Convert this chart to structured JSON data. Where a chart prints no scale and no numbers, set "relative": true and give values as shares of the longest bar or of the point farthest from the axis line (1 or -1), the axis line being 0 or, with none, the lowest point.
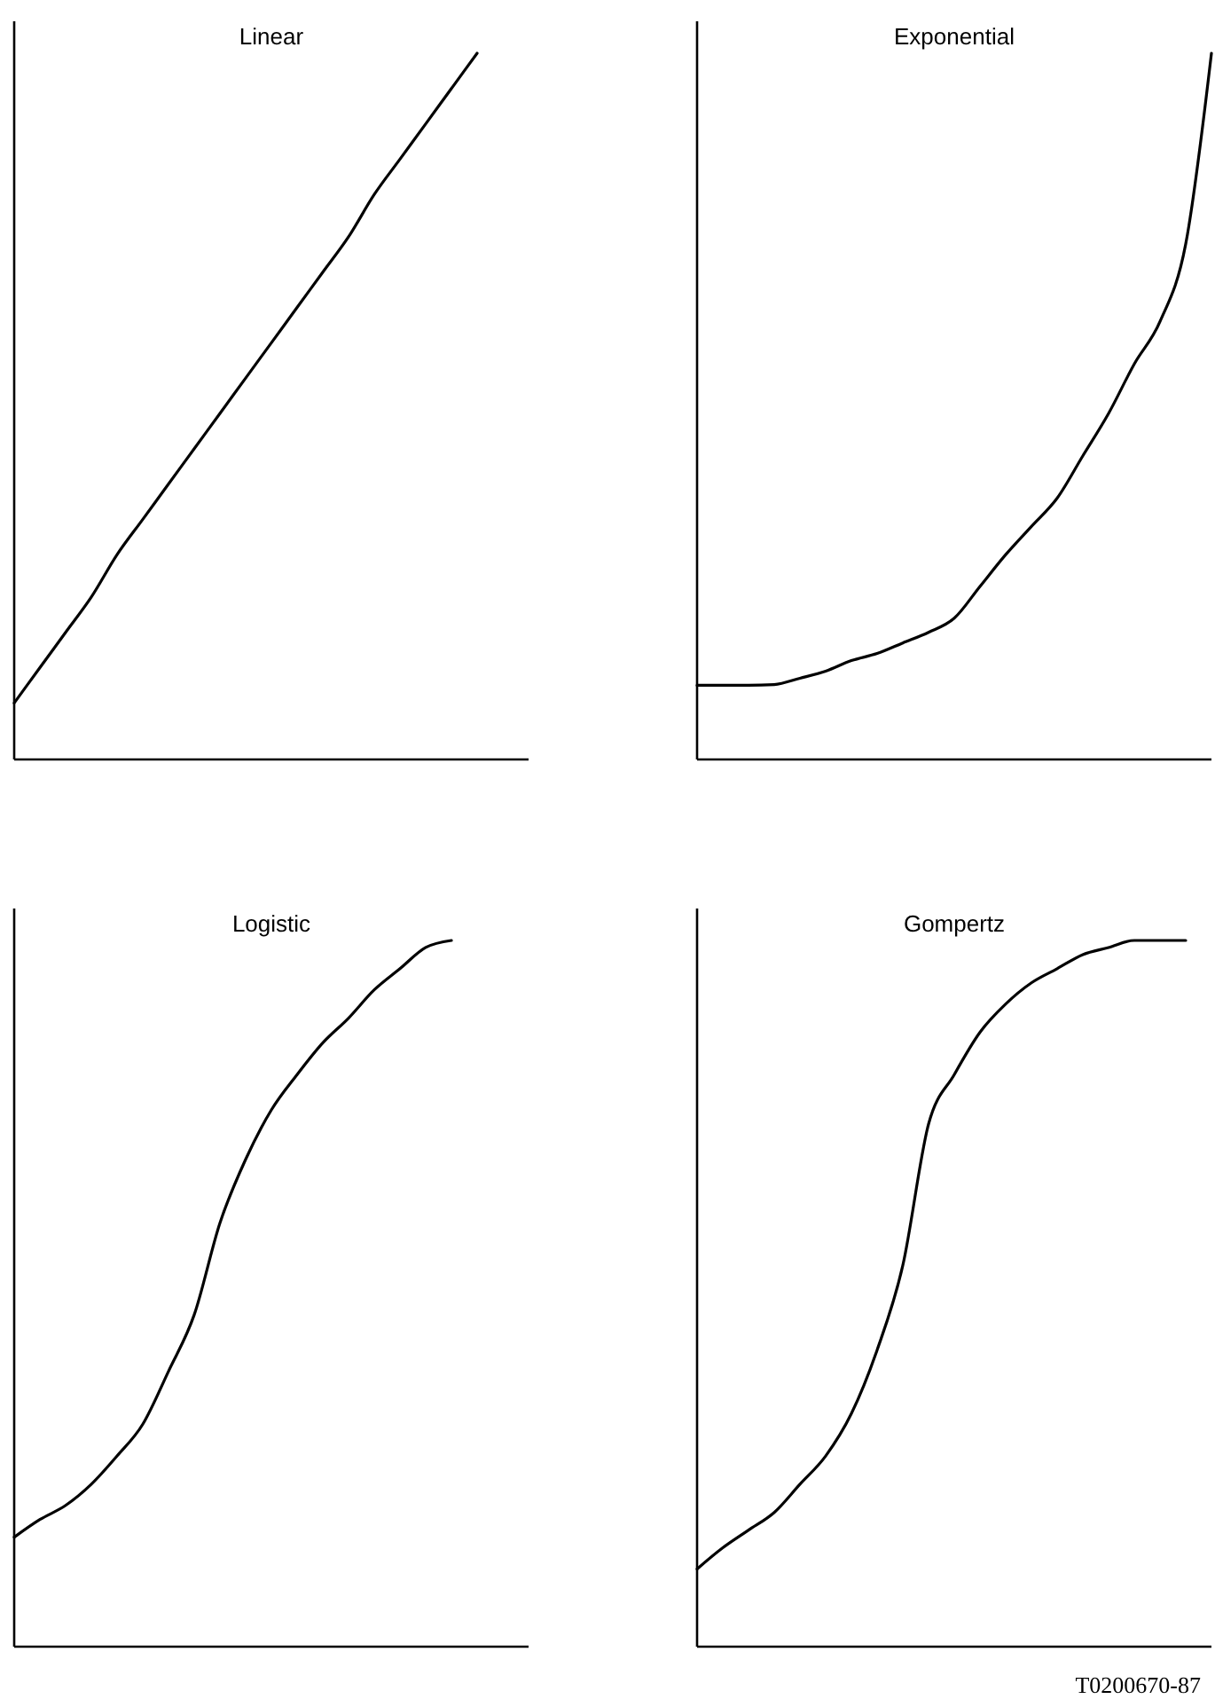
{
  "chart_data": [
    {
      "type": "line",
      "title": "Linear",
      "relative": true,
      "categories": [
        null,
        null,
        null,
        null,
        null,
        null,
        null,
        null,
        null,
        null,
        null,
        null,
        null,
        null,
        null,
        null,
        null,
        null,
        null,
        null,
        null
      ],
      "series": [
        {
          "color": "#000000",
          "values": [
            0.08,
            0.13,
            0.18,
            0.23,
            0.29,
            0.34,
            0.39,
            0.44,
            0.49,
            0.54,
            0.59,
            0.64,
            0.69,
            0.74,
            0.8,
            0.85,
            0.9,
            0.95,
            1,
            null,
            null
          ]
        }
      ]
    },
    {
      "type": "line",
      "title": "Exponential",
      "relative": true,
      "categories": [
        null,
        null,
        null,
        null,
        null,
        null,
        null,
        null,
        null,
        null,
        null,
        null,
        null,
        null,
        null,
        null,
        null,
        null,
        null,
        null,
        null
      ],
      "series": [
        {
          "color": "#000000",
          "values": [
            0.105,
            0.105,
            0.105,
            0.106,
            0.115,
            0.125,
            0.14,
            0.15,
            0.165,
            0.18,
            0.2,
            0.245,
            0.29,
            0.33,
            0.37,
            0.43,
            0.49,
            0.56,
            0.62,
            0.73,
            1
          ]
        }
      ]
    },
    {
      "type": "line",
      "title": "Logistic",
      "relative": true,
      "categories": [
        null,
        null,
        null,
        null,
        null,
        null,
        null,
        null,
        null,
        null,
        null,
        null,
        null,
        null,
        null,
        null,
        null,
        null,
        null,
        null,
        null
      ],
      "series": [
        {
          "color": "#000000",
          "values": [
            0.155,
            0.18,
            0.2,
            0.23,
            0.27,
            0.315,
            0.39,
            0.47,
            0.6,
            0.69,
            0.76,
            0.81,
            0.855,
            0.89,
            0.93,
            0.96,
            0.99,
            1,
            null,
            null,
            null
          ]
        }
      ]
    },
    {
      "type": "line",
      "title": "Gompertz",
      "relative": true,
      "annotations": [
        "T0200670-87"
      ],
      "categories": [
        null,
        null,
        null,
        null,
        null,
        null,
        null,
        null,
        null,
        null,
        null,
        null,
        null,
        null,
        null,
        null,
        null,
        null,
        null,
        null,
        null
      ],
      "series": [
        {
          "color": "#000000",
          "values": [
            0.11,
            0.14,
            0.165,
            0.19,
            0.23,
            0.27,
            0.33,
            0.42,
            0.54,
            0.74,
            0.81,
            0.87,
            0.91,
            0.94,
            0.96,
            0.98,
            0.99,
            1,
            1,
            1,
            null
          ]
        }
      ]
    }
  ]
}
